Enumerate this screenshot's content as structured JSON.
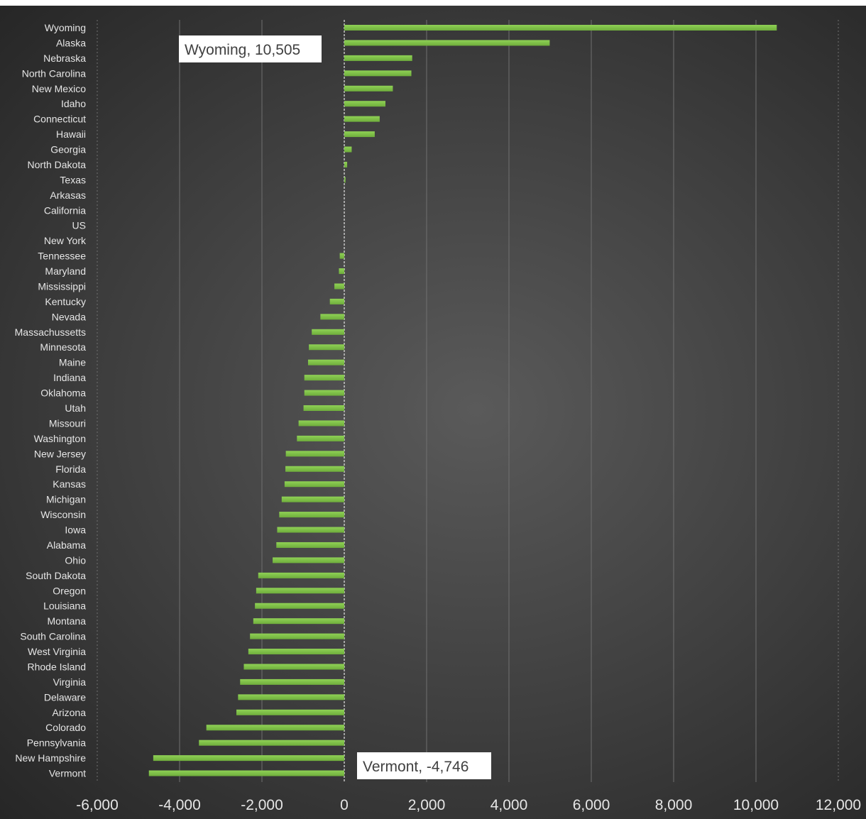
{
  "colors": {
    "bar": "#6fae3c",
    "bar_highlight": "#8fd155",
    "grid": "#707070",
    "zero_line": "#d9d9d9",
    "label": "#e6e6e6",
    "callout_bg": "#ffffff",
    "callout_text": "#404040"
  },
  "chart_data": {
    "type": "bar",
    "orientation": "horizontal",
    "title": "",
    "xlabel": "",
    "ylabel": "",
    "xlim": [
      -6000,
      12000
    ],
    "x_ticks": [
      -6000,
      -4000,
      -2000,
      0,
      2000,
      4000,
      6000,
      8000,
      10000,
      12000
    ],
    "x_tick_labels": [
      "-6,000",
      "-4,000",
      "-2,000",
      "0",
      "2,000",
      "4,000",
      "6,000",
      "8,000",
      "10,000",
      "12,000"
    ],
    "grid": true,
    "legend": "none",
    "categories": [
      "Wyoming",
      "Alaska",
      "Nebraska",
      "North Carolina",
      "New Mexico",
      "Idaho",
      "Connecticut",
      "Hawaii",
      "Georgia",
      "North Dakota",
      "Texas",
      "Arkasas",
      "California",
      "US",
      "New York",
      "Tennessee",
      "Maryland",
      "Mississippi",
      "Kentucky",
      "Nevada",
      "Massachussetts",
      "Minnesota",
      "Maine",
      "Indiana",
      "Oklahoma",
      "Utah",
      "Missouri",
      "Washington",
      "New Jersey",
      "Florida",
      "Kansas",
      "Michigan",
      "Wisconsin",
      "Iowa",
      "Alabama",
      "Ohio",
      "South Dakota",
      "Oregon",
      "Louisiana",
      "Montana",
      "South Carolina",
      "West Virginia",
      "Rhode Island",
      "Virginia",
      "Delaware",
      "Arizona",
      "Colorado",
      "Pennsylvania",
      "New Hampshire",
      "Vermont"
    ],
    "values": [
      10505,
      4990,
      1650,
      1630,
      1180,
      1000,
      860,
      740,
      180,
      70,
      30,
      0,
      0,
      0,
      0,
      -110,
      -130,
      -240,
      -350,
      -580,
      -790,
      -860,
      -880,
      -970,
      -970,
      -990,
      -1110,
      -1150,
      -1420,
      -1430,
      -1450,
      -1520,
      -1580,
      -1630,
      -1650,
      -1740,
      -2090,
      -2140,
      -2170,
      -2210,
      -2290,
      -2330,
      -2440,
      -2530,
      -2580,
      -2620,
      -3350,
      -3530,
      -4640,
      -4746
    ],
    "annotations": [
      {
        "category": "Wyoming",
        "text": "Wyoming, 10,505"
      },
      {
        "category": "Vermont",
        "text": "Vermont, -4,746"
      }
    ]
  }
}
